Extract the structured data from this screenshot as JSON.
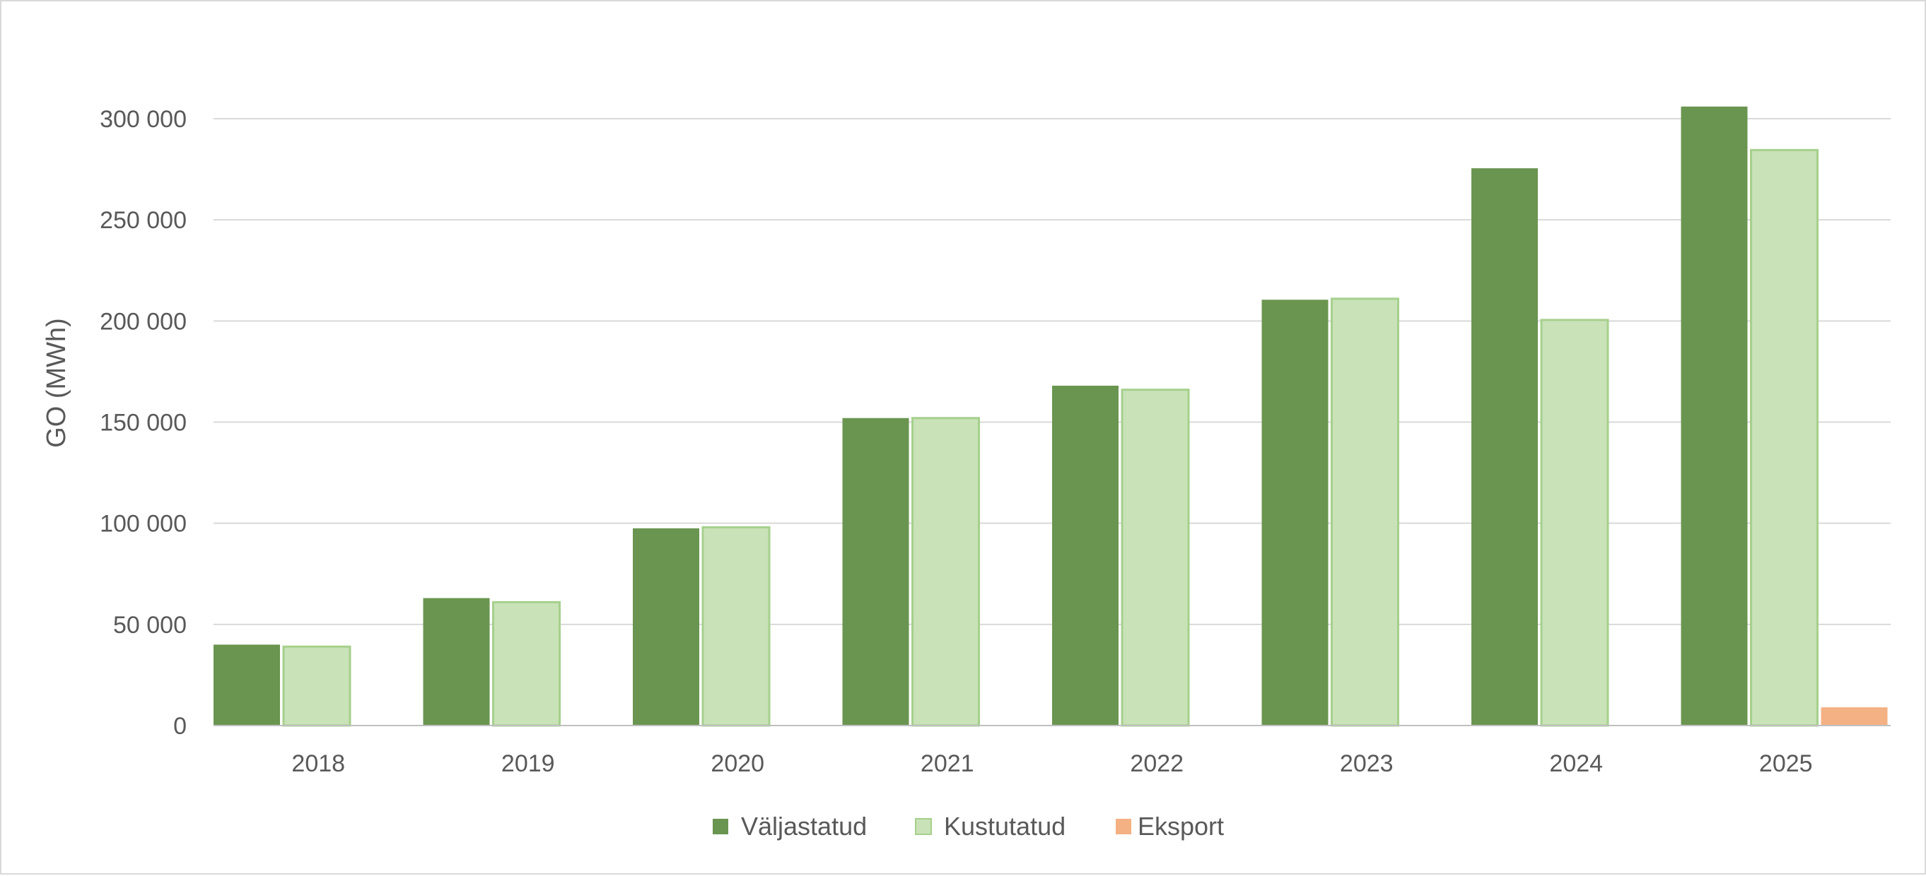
{
  "chart_data": {
    "type": "bar",
    "title": "",
    "xlabel": "",
    "ylabel": "GO (MWh)",
    "ylim": [
      0,
      300000
    ],
    "yticks": [
      0,
      50000,
      100000,
      150000,
      200000,
      250000,
      300000
    ],
    "ytick_labels": [
      "0",
      "50 000",
      "100 000",
      "150 000",
      "200 000",
      "250 000",
      "300 000"
    ],
    "categories": [
      "2018",
      "2019",
      "2020",
      "2021",
      "2022",
      "2023",
      "2024",
      "2025"
    ],
    "series": [
      {
        "name": "Väljastatud",
        "color": "#6a9550",
        "values": [
          40000,
          63000,
          97500,
          152000,
          168000,
          210500,
          275500,
          306000
        ]
      },
      {
        "name": "Kustutatud",
        "color": "#c9e2b8",
        "stroke": "#a6d08d",
        "values": [
          39000,
          61000,
          98000,
          152000,
          166000,
          211000,
          200500,
          284500
        ]
      },
      {
        "name": "Eksport",
        "color": "#f4b183",
        "values": [
          0,
          0,
          0,
          0,
          0,
          0,
          0,
          9000
        ]
      }
    ],
    "grid": true,
    "legend": "bottom"
  }
}
